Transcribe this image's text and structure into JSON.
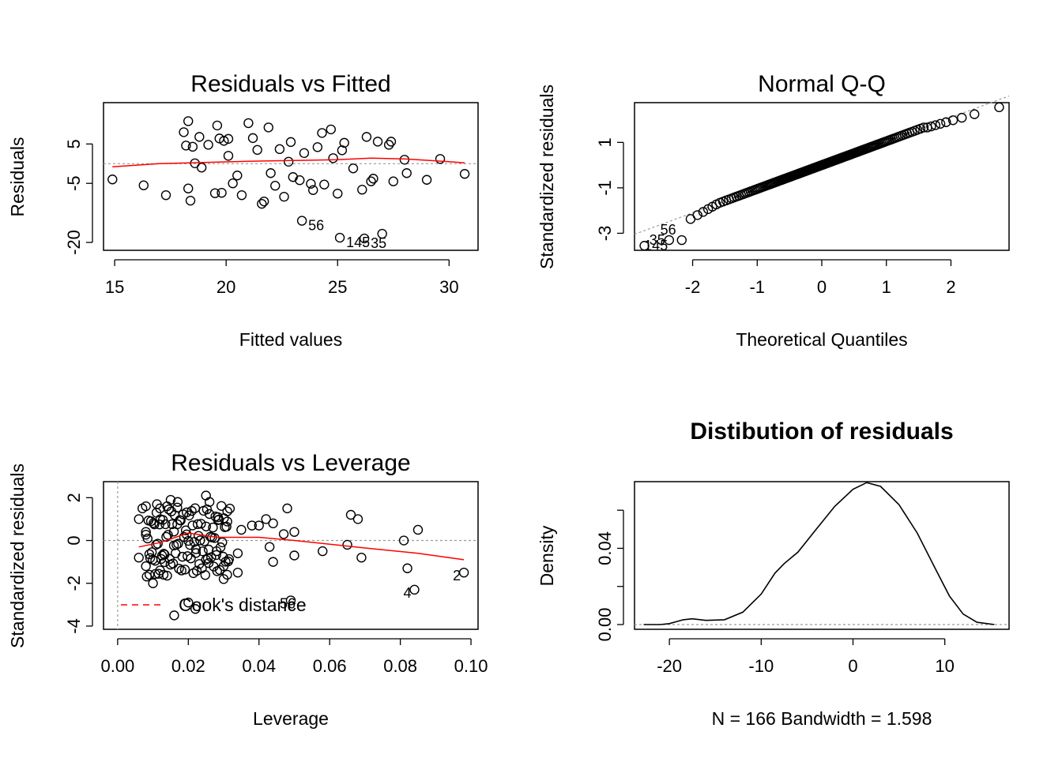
{
  "chart_data": [
    {
      "type": "scatter",
      "title": "Residuals vs Fitted",
      "xlabel": "Fitted values",
      "ylabel": "Residuals",
      "xlim": [
        14.5,
        31.3
      ],
      "ylim": [
        -22,
        15.5
      ],
      "x_ticks": [
        15,
        20,
        25,
        30
      ],
      "y_ticks": [
        -20,
        -5,
        5
      ],
      "reference_line_y": 0,
      "points": [
        [
          14.9,
          -4
        ],
        [
          16.3,
          -5.5
        ],
        [
          17.3,
          -8
        ],
        [
          18.1,
          8
        ],
        [
          18.3,
          10.8
        ],
        [
          18.2,
          4.6
        ],
        [
          18.3,
          -6.3
        ],
        [
          18.4,
          -9.4
        ],
        [
          18.5,
          4.3
        ],
        [
          18.8,
          6.8
        ],
        [
          18.9,
          -1
        ],
        [
          18.6,
          0.1
        ],
        [
          19.2,
          4.8
        ],
        [
          19.6,
          9.7
        ],
        [
          19.7,
          6.4
        ],
        [
          19.8,
          -7.4
        ],
        [
          19.5,
          -7.5
        ],
        [
          19.9,
          5.8
        ],
        [
          20.1,
          6.3
        ],
        [
          20.3,
          -5
        ],
        [
          20.1,
          2
        ],
        [
          20.5,
          -3
        ],
        [
          20.7,
          -8
        ],
        [
          21.0,
          10.3
        ],
        [
          21.2,
          6.5
        ],
        [
          21.4,
          3.5
        ],
        [
          21.7,
          -9.6
        ],
        [
          21.6,
          -10.2
        ],
        [
          21.9,
          9.2
        ],
        [
          22.0,
          -2.4
        ],
        [
          22.2,
          -5.6
        ],
        [
          22.4,
          3.7
        ],
        [
          22.6,
          -8.4
        ],
        [
          22.8,
          0.5
        ],
        [
          22.9,
          5.5
        ],
        [
          23.0,
          -3.4
        ],
        [
          23.3,
          -4.2
        ],
        [
          23.4,
          -14.5
        ],
        [
          23.5,
          2.7
        ],
        [
          23.8,
          -5.1
        ],
        [
          23.9,
          -6.7
        ],
        [
          24.1,
          4.2
        ],
        [
          24.3,
          7.8
        ],
        [
          24.4,
          -5.3
        ],
        [
          24.7,
          8.7
        ],
        [
          24.8,
          1.4
        ],
        [
          25.0,
          -7.6
        ],
        [
          25.1,
          -18.8
        ],
        [
          25.2,
          3.4
        ],
        [
          25.3,
          5.3
        ],
        [
          25.7,
          -1.2
        ],
        [
          26.1,
          -6.6
        ],
        [
          26.2,
          -19
        ],
        [
          26.3,
          6.8
        ],
        [
          26.5,
          -4.5
        ],
        [
          26.6,
          -3.8
        ],
        [
          26.8,
          5.6
        ],
        [
          27.0,
          -17.8
        ],
        [
          27.3,
          4.8
        ],
        [
          27.4,
          5.6
        ],
        [
          27.5,
          -4.5
        ],
        [
          28.0,
          1
        ],
        [
          28.1,
          -2.4
        ],
        [
          29.0,
          -4.1
        ],
        [
          29.6,
          1.2
        ],
        [
          30.7,
          -2.6
        ]
      ],
      "smooth_line": [
        [
          14.9,
          -0.8
        ],
        [
          17,
          0
        ],
        [
          19,
          0.3
        ],
        [
          21,
          0.6
        ],
        [
          23,
          0.8
        ],
        [
          25,
          1
        ],
        [
          26.5,
          1.4
        ],
        [
          28,
          1.2
        ],
        [
          30,
          0.5
        ],
        [
          30.7,
          0.2
        ]
      ],
      "point_labels": [
        {
          "text": "56",
          "x": 23.4,
          "y": -14.5
        },
        {
          "text": "145",
          "x": 25.1,
          "y": -18.8
        },
        {
          "text": "35",
          "x": 26.2,
          "y": -19
        }
      ]
    },
    {
      "type": "scatter",
      "title": "Normal Q-Q",
      "xlabel": "Theoretical Quantiles",
      "ylabel": "Standardized residuals",
      "xlim": [
        -2.9,
        2.9
      ],
      "ylim": [
        -3.75,
        2.75
      ],
      "x_ticks": [
        -2,
        -1,
        0,
        1,
        2
      ],
      "y_ticks": [
        -3,
        -1,
        1
      ],
      "reference_line": {
        "intercept": 0,
        "slope": 1.05
      },
      "point_count": 166,
      "point_labels": [
        {
          "text": "56",
          "x": -2.55,
          "y": -2.85
        },
        {
          "text": "35",
          "x": -2.72,
          "y": -3.3
        },
        {
          "text": "145",
          "x": -2.8,
          "y": -3.55
        }
      ]
    },
    {
      "type": "scatter",
      "title": "Residuals vs Leverage",
      "xlabel": "Leverage",
      "ylabel": "Standardized residuals",
      "xlim": [
        -0.004,
        0.102
      ],
      "ylim": [
        -4.15,
        2.75
      ],
      "x_ticks": [
        "0.00",
        "0.02",
        "0.04",
        "0.06",
        "0.08",
        "0.10"
      ],
      "y_ticks": [
        -4,
        -2,
        0,
        2
      ],
      "reference_line_y": 0,
      "legend": {
        "text": "Cook's distance",
        "position": "bottom-left"
      },
      "points": [
        [
          0.006,
          1
        ],
        [
          0.007,
          1.5
        ],
        [
          0.008,
          1.6
        ],
        [
          0.011,
          1.3
        ],
        [
          0.012,
          1.5
        ],
        [
          0.014,
          1.6
        ],
        [
          0.015,
          1.9
        ],
        [
          0.017,
          1.8
        ],
        [
          0.025,
          2.1
        ],
        [
          0.026,
          1.8
        ],
        [
          0.006,
          -0.8
        ],
        [
          0.008,
          -1.2
        ],
        [
          0.009,
          -1.6
        ],
        [
          0.01,
          -2
        ],
        [
          0.012,
          -1.4
        ],
        [
          0.013,
          -1.6
        ],
        [
          0.016,
          -3.5
        ],
        [
          0.02,
          -2.9
        ],
        [
          0.022,
          -3.2
        ],
        [
          0.025,
          -0.9
        ],
        [
          0.028,
          -0.5
        ],
        [
          0.03,
          -1.2
        ],
        [
          0.03,
          -1.8
        ],
        [
          0.031,
          -1.6
        ],
        [
          0.034,
          -0.6
        ],
        [
          0.034,
          -1.5
        ],
        [
          0.035,
          0.5
        ],
        [
          0.038,
          0.7
        ],
        [
          0.04,
          0.7
        ],
        [
          0.042,
          1
        ],
        [
          0.044,
          0.8
        ],
        [
          0.043,
          -0.3
        ],
        [
          0.044,
          -1
        ],
        [
          0.047,
          0.3
        ],
        [
          0.048,
          1.5
        ],
        [
          0.049,
          -2.8
        ],
        [
          0.05,
          0.4
        ],
        [
          0.05,
          -0.7
        ],
        [
          0.058,
          -0.5
        ],
        [
          0.065,
          -0.2
        ],
        [
          0.066,
          1.2
        ],
        [
          0.068,
          1
        ],
        [
          0.069,
          -0.8
        ],
        [
          0.081,
          0
        ],
        [
          0.082,
          -1.3
        ],
        [
          0.084,
          -2.3
        ],
        [
          0.085,
          0.5
        ],
        [
          0.098,
          -1.5
        ]
      ],
      "smooth_line": [
        [
          0.006,
          -0.3
        ],
        [
          0.012,
          -0.1
        ],
        [
          0.02,
          0.35
        ],
        [
          0.028,
          0.15
        ],
        [
          0.04,
          0.15
        ],
        [
          0.05,
          0
        ],
        [
          0.07,
          -0.35
        ],
        [
          0.085,
          -0.6
        ],
        [
          0.098,
          -0.9
        ]
      ],
      "point_labels": [
        {
          "text": "56",
          "x": 0.049,
          "y": -2.8
        },
        {
          "text": "4",
          "x": 0.084,
          "y": -2.3
        },
        {
          "text": "2",
          "x": 0.098,
          "y": -1.5
        }
      ]
    },
    {
      "type": "line",
      "title": "Distibution of residuals",
      "xlabel": "N = 166   Bandwidth = 1.598",
      "ylabel": "Density",
      "xlim": [
        -23.8,
        17
      ],
      "ylim": [
        -0.0025,
        0.075
      ],
      "x_ticks": [
        -20,
        -10,
        0,
        10
      ],
      "y_ticks": [
        "0.00",
        "0.04"
      ],
      "y_minor_ticks": [
        0.02,
        0.06
      ],
      "points": [
        [
          -22.8,
          0
        ],
        [
          -21,
          0
        ],
        [
          -20,
          0.0005
        ],
        [
          -18.5,
          0.0025
        ],
        [
          -17.5,
          0.003
        ],
        [
          -16,
          0.0022
        ],
        [
          -14,
          0.0025
        ],
        [
          -12,
          0.0065
        ],
        [
          -10,
          0.016
        ],
        [
          -8.5,
          0.027
        ],
        [
          -7.5,
          0.032
        ],
        [
          -6,
          0.038
        ],
        [
          -4,
          0.05
        ],
        [
          -2,
          0.062
        ],
        [
          0,
          0.071
        ],
        [
          1.5,
          0.0745
        ],
        [
          3,
          0.0725
        ],
        [
          5,
          0.063
        ],
        [
          7,
          0.048
        ],
        [
          9,
          0.029
        ],
        [
          10.5,
          0.015
        ],
        [
          12,
          0.0055
        ],
        [
          13.5,
          0.0012
        ],
        [
          15.4,
          0
        ]
      ]
    }
  ]
}
